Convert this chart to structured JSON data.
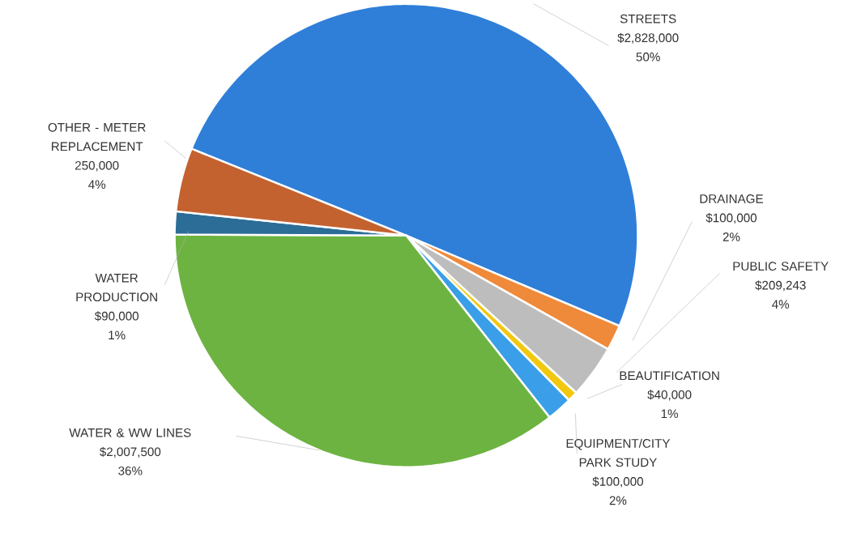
{
  "chart_data": {
    "type": "pie",
    "categories": [
      "STREETS",
      "DRAINAGE",
      "PUBLIC SAFETY",
      "BEAUTIFICATION",
      "EQUIPMENT/CITY PARK STUDY",
      "WATER & WW LINES",
      "WATER PRODUCTION",
      "OTHER - METER REPLACEMENT"
    ],
    "values": [
      2828000,
      100000,
      209243,
      40000,
      100000,
      2007500,
      90000,
      250000
    ],
    "value_labels": [
      "$2,828,000 50%",
      "$100,000 2%",
      "$209,243 4%",
      "$40,000 1%",
      "$100,000 2%",
      "$2,007,500 36%",
      "$90,000 1%",
      "250,000 4%"
    ],
    "colors": [
      "#2f7fd8",
      "#ef8a3a",
      "#bdbdbd",
      "#f2c80f",
      "#3a9fe8",
      "#6db341",
      "#2c6d97",
      "#c4622f"
    ]
  }
}
